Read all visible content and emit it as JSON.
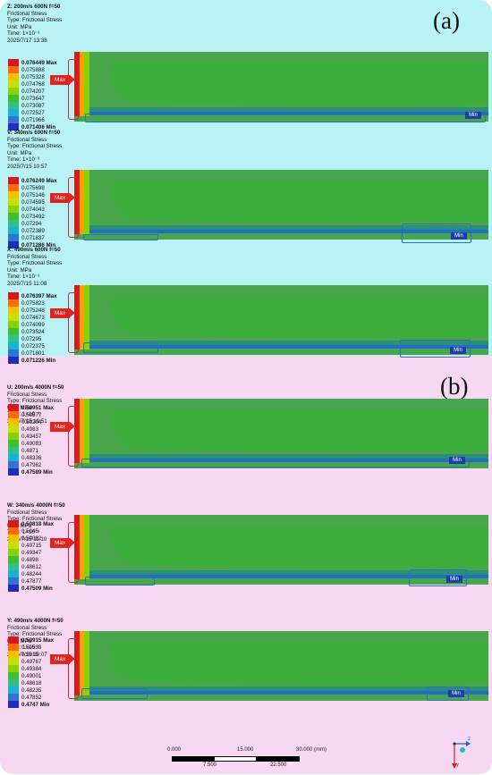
{
  "panel_labels": {
    "a": "(a)",
    "b": "(b)"
  },
  "colors": {
    "panel_a_bg": "#b9f2f4",
    "panel_b_bg": "#f6d8f2",
    "contour_scale": [
      "#d7191c",
      "#ff6b00",
      "#f4c000",
      "#c6e000",
      "#8ad100",
      "#3fbf2a",
      "#2fbf8a",
      "#19b3d2",
      "#2f73d6",
      "#1f2dbf"
    ],
    "plot_core": "#3bae3b",
    "plot_outer": "#4aa64d",
    "plot_edge": "#2a8f74"
  },
  "tags": {
    "max": "Max",
    "min": "Min"
  },
  "simulations": [
    {
      "panel": "a",
      "header": "Z: 200m/s  600N   f=50",
      "info": [
        "Frictional Stress",
        "Type: Frictional Stress",
        "Unit: MPa",
        "Time: 1×10⁻³",
        "2025/7/17 13:38"
      ],
      "legend": [
        "0.076449 Max",
        "0.075888",
        "0.075328",
        "0.074768",
        "0.074207",
        "0.073647",
        "0.073087",
        "0.072527",
        "0.071966",
        "0.071406 Min"
      ]
    },
    {
      "panel": "a",
      "header": "V: 340m/s  600N   f=50",
      "info": [
        "Frictional Stress",
        "Type: Frictional Stress",
        "Unit: MPa",
        "Time: 1×10⁻³",
        "2025/7/15 10:57"
      ],
      "legend": [
        "0.076249 Max",
        "0.075698",
        "0.075146",
        "0.074595",
        "0.074043",
        "0.073492",
        "0.07294",
        "0.072389",
        "0.071837",
        "0.071286 Min"
      ]
    },
    {
      "panel": "a",
      "header": "X: 490m/s  600N   f=50",
      "info": [
        "Frictional Stress",
        "Type: Frictional Stress",
        "Unit: MPa",
        "Time: 1×10⁻³",
        "2025/7/15 11:08"
      ],
      "legend": [
        "0.076397 Max",
        "0.075823",
        "0.075248",
        "0.074673",
        "0.074099",
        "0.073524",
        "0.07295",
        "0.072375",
        "0.071801",
        "0.071226 Min"
      ]
    },
    {
      "panel": "b",
      "header": "U: 200m/s  4000N   f=50",
      "info": [
        "Frictional Stress",
        "Type: Frictional Stress",
        "Unit: MPa",
        "Time: 1×10⁻³",
        "2025/7/15 10:51"
      ],
      "legend": [
        "0.50951 Max",
        "0.50577",
        "0.50204",
        "0.4983",
        "0.49457",
        "0.49083",
        "0.4871",
        "0.48336",
        "0.47962",
        "0.47589 Min"
      ]
    },
    {
      "panel": "b",
      "header": "W: 340m/s  4000N   f=50",
      "info": [
        "Frictional Stress",
        "Type: Frictional Stress",
        "Unit: MPa",
        "Time: 1×10⁻³",
        "2025/7/15 11:10"
      ],
      "legend": [
        "0.50818 Max",
        "0.5045",
        "0.50082",
        "0.49715",
        "0.49347",
        "0.4898",
        "0.48612",
        "0.48244",
        "0.47877",
        "0.47509 Min"
      ]
    },
    {
      "panel": "b",
      "header": "Y: 490m/s  4000N   f=50",
      "info": [
        "Frictional Stress",
        "Type: Frictional Stress",
        "Unit: MPa",
        "Time: 1×10⁻³",
        "2025/7/15 10:07"
      ],
      "legend": [
        "0.50915 Max",
        "0.50533",
        "0.5015",
        "0.49767",
        "0.49384",
        "0.49001",
        "0.48618",
        "0.48235",
        "0.47852",
        "0.4747 Min"
      ]
    }
  ],
  "scale_bar": {
    "ticks_top": [
      "0.000",
      "15.000",
      "30.000 (mm)"
    ],
    "ticks_bottom": [
      "7.500",
      "22.500"
    ]
  },
  "triad_labels": {
    "z": "z",
    "y": "y"
  }
}
